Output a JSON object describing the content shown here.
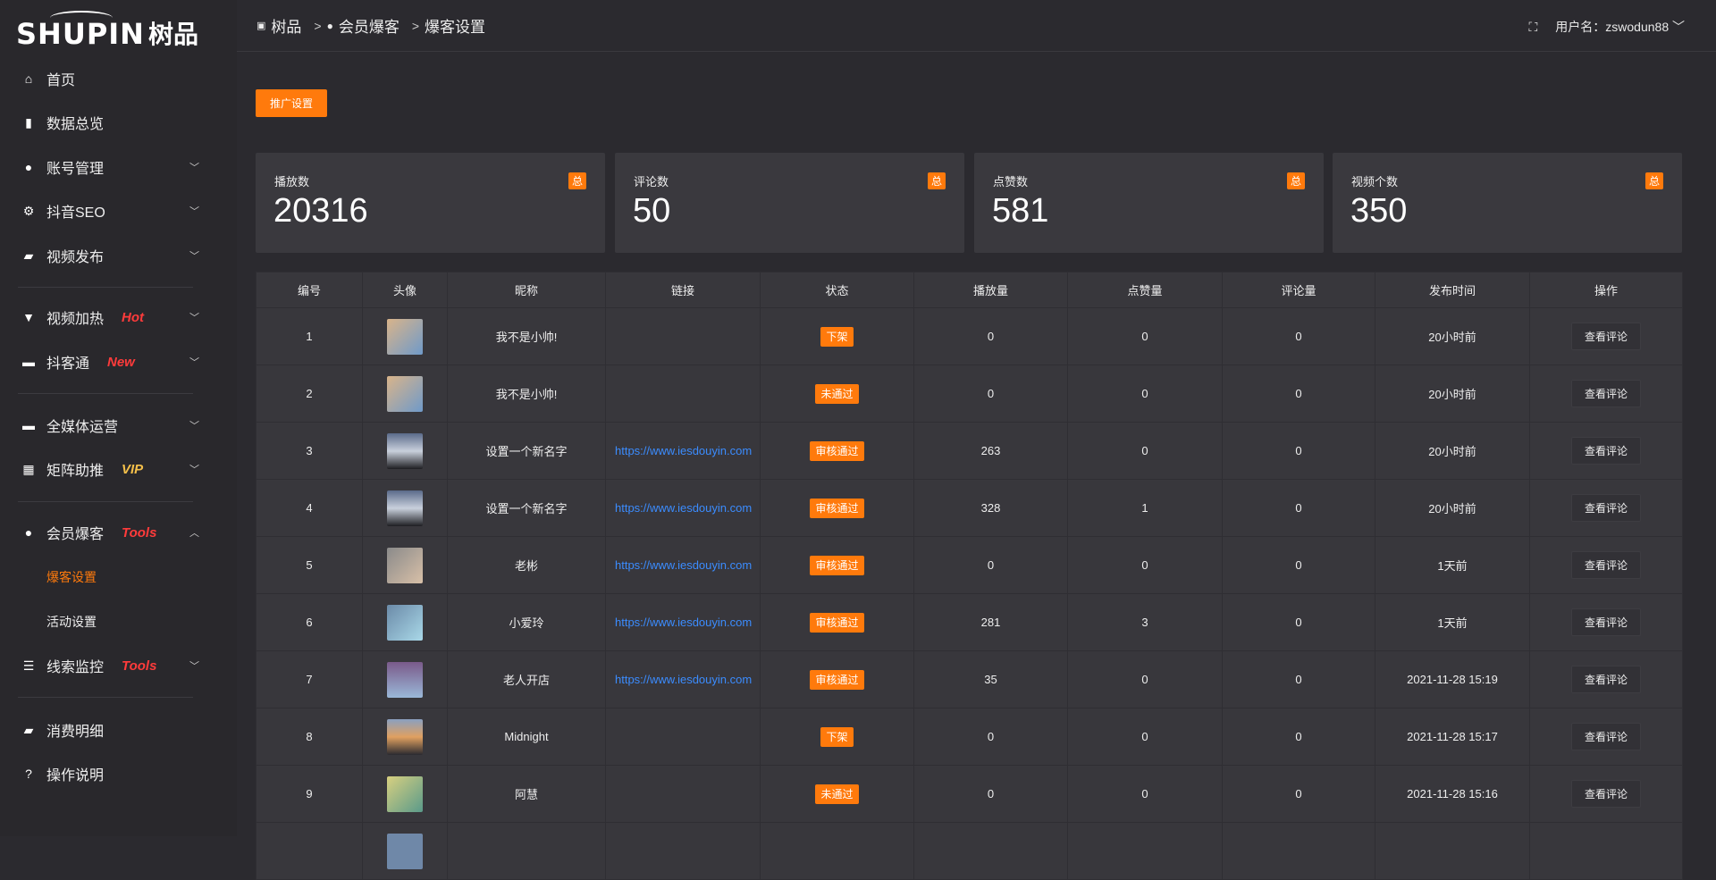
{
  "logo": {
    "en": "SHUPIN",
    "cn": "树品"
  },
  "sidebar": {
    "items": [
      {
        "label": "首页",
        "icon": "home-icon",
        "glyph": "⌂"
      },
      {
        "label": "数据总览",
        "icon": "bar-chart-icon",
        "glyph": "▮"
      },
      {
        "label": "账号管理",
        "icon": "user-icon",
        "glyph": "●",
        "chev": "﹀"
      },
      {
        "label": "抖音SEO",
        "icon": "gear-icon",
        "glyph": "⚙",
        "chev": "﹀"
      },
      {
        "label": "视频发布",
        "icon": "camera-icon",
        "glyph": "▰",
        "chev": "﹀"
      },
      {
        "label": "视频加热",
        "icon": "flag-icon",
        "glyph": "▼",
        "chev": "﹀",
        "tag": "Hot",
        "tagColor": "#ff3b3b"
      },
      {
        "label": "抖客通",
        "icon": "chat-icon",
        "glyph": "▬",
        "chev": "﹀",
        "tag": "New",
        "tagColor": "#ff3b3b"
      },
      {
        "label": "全媒体运营",
        "icon": "monitor-icon",
        "glyph": "▬",
        "chev": "﹀"
      },
      {
        "label": "矩阵助推",
        "icon": "grid-icon",
        "glyph": "▦",
        "chev": "﹀",
        "tag": "VIP",
        "tagColor": "#f5c04a"
      },
      {
        "label": "会员爆客",
        "icon": "user-icon",
        "glyph": "●",
        "chev": "︿",
        "tag": "Tools",
        "tagColor": "#ff3b3b"
      },
      {
        "label": "线索监控",
        "icon": "sliders-icon",
        "glyph": "☰",
        "chev": "﹀",
        "tag": "Tools",
        "tagColor": "#ff3b3b"
      },
      {
        "label": "消费明细",
        "icon": "wallet-icon",
        "glyph": "▰"
      },
      {
        "label": "操作说明",
        "icon": "help-icon",
        "glyph": "?"
      }
    ],
    "subitems": [
      {
        "label": "爆客设置",
        "active": true
      },
      {
        "label": "活动设置"
      }
    ]
  },
  "breadcrumb": [
    {
      "label": "树品"
    },
    {
      "label": "会员爆客"
    },
    {
      "label": "爆客设置"
    }
  ],
  "header": {
    "username": "用户名：zswodun88"
  },
  "promo_button": "推广设置",
  "accent": "#ff7a0c",
  "cards": [
    {
      "title": "播放数",
      "value": "20316",
      "badge": "总"
    },
    {
      "title": "评论数",
      "value": "50",
      "badge": "总"
    },
    {
      "title": "点赞数",
      "value": "581",
      "badge": "总"
    },
    {
      "title": "视频个数",
      "value": "350",
      "badge": "总"
    }
  ],
  "table": {
    "headers": [
      "编号",
      "头像",
      "昵称",
      "链接",
      "状态",
      "播放量",
      "点赞量",
      "评论量",
      "发布时间",
      "操作"
    ],
    "action_label": "查看评论",
    "rows": [
      {
        "id": "1",
        "nick": "我不是小帅!",
        "link": "",
        "status": "下架",
        "plays": "0",
        "likes": "0",
        "comments": "0",
        "time": "20小时前",
        "av": "linear-gradient(135deg,#d9b48a,#6f9ac9)"
      },
      {
        "id": "2",
        "nick": "我不是小帅!",
        "link": "",
        "status": "未通过",
        "plays": "0",
        "likes": "0",
        "comments": "0",
        "time": "20小时前",
        "av": "linear-gradient(135deg,#d9b48a,#6f9ac9)"
      },
      {
        "id": "3",
        "nick": "设置一个新名字",
        "link": "https://www.iesdouyin.com",
        "status": "审核通过",
        "plays": "263",
        "likes": "0",
        "comments": "0",
        "time": "20小时前",
        "av": "linear-gradient(180deg,#5a6a8a,#c9d0dc,#1e1e22)"
      },
      {
        "id": "4",
        "nick": "设置一个新名字",
        "link": "https://www.iesdouyin.com",
        "status": "审核通过",
        "plays": "328",
        "likes": "1",
        "comments": "0",
        "time": "20小时前",
        "av": "linear-gradient(180deg,#5a6a8a,#c9d0dc,#1e1e22)"
      },
      {
        "id": "5",
        "nick": "老彬",
        "link": "https://www.iesdouyin.com",
        "status": "审核通过",
        "plays": "0",
        "likes": "0",
        "comments": "0",
        "time": "1天前",
        "av": "linear-gradient(135deg,#8a8a8a,#d8c0a8)"
      },
      {
        "id": "6",
        "nick": "小爱玲",
        "link": "https://www.iesdouyin.com",
        "status": "审核通过",
        "plays": "281",
        "likes": "3",
        "comments": "0",
        "time": "1天前",
        "av": "linear-gradient(135deg,#6b8aa8,#a9d8e8)"
      },
      {
        "id": "7",
        "nick": "老人开店",
        "link": "https://www.iesdouyin.com",
        "status": "审核通过",
        "plays": "35",
        "likes": "0",
        "comments": "0",
        "time": "2021-11-28 15:19",
        "av": "linear-gradient(180deg,#7a5a8a,#9ab8d8)"
      },
      {
        "id": "8",
        "nick": "Midnight",
        "link": "",
        "status": "下架",
        "plays": "0",
        "likes": "0",
        "comments": "0",
        "time": "2021-11-28 15:17",
        "av": "linear-gradient(180deg,#8aa0c0,#e0a060,#2a2a30)"
      },
      {
        "id": "9",
        "nick": "阿慧",
        "link": "",
        "status": "未通过",
        "plays": "0",
        "likes": "0",
        "comments": "0",
        "time": "2021-11-28 15:16",
        "av": "linear-gradient(135deg,#d8d080,#5a9a8a)"
      }
    ]
  }
}
